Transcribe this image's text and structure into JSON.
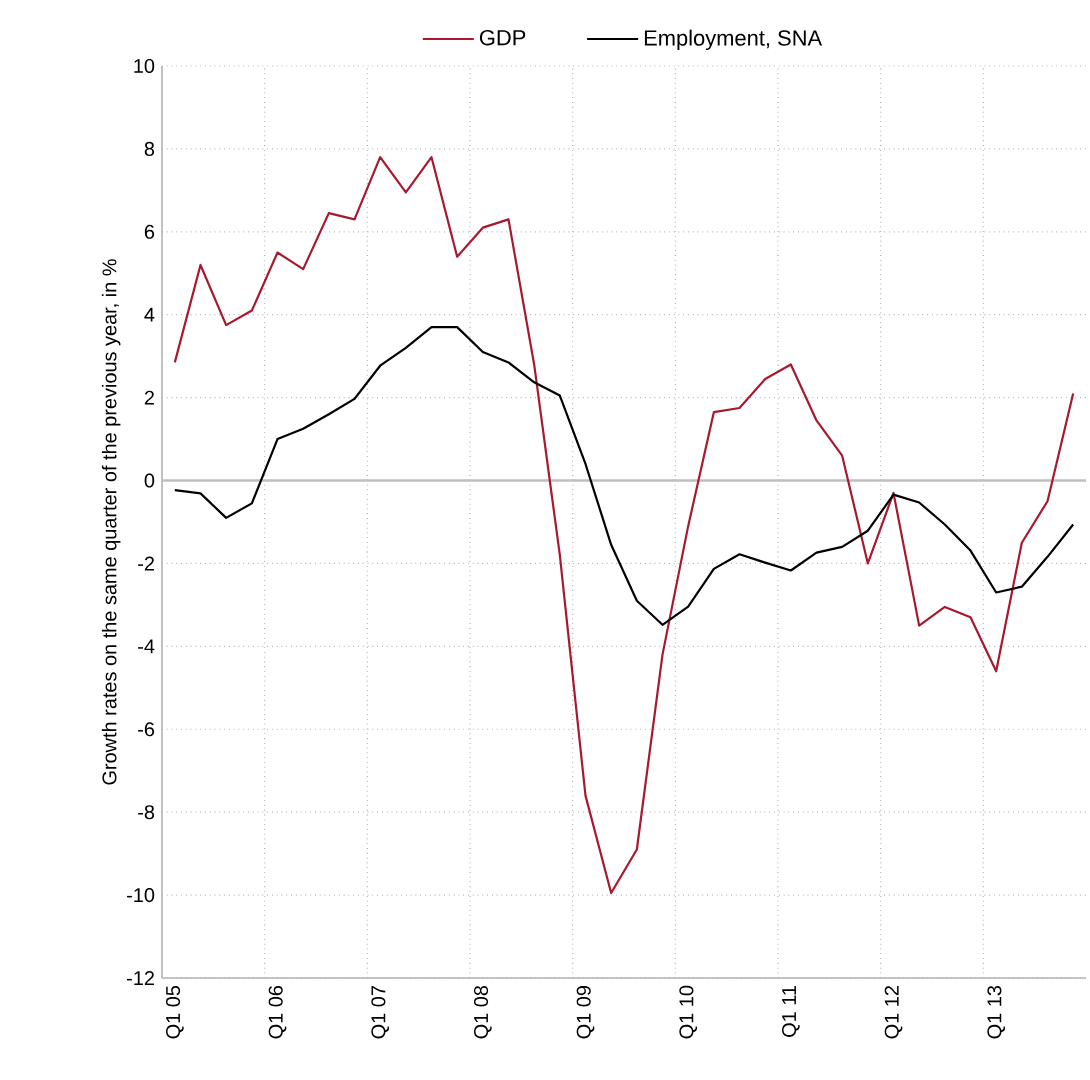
{
  "chart_data": {
    "type": "line",
    "ylabel": "Growth rates on the same quarter of the previous year, in %",
    "categories": [
      "Q1 05",
      null,
      null,
      null,
      "Q1 06",
      null,
      null,
      null,
      "Q1 07",
      null,
      null,
      null,
      "Q1 08",
      null,
      null,
      null,
      "Q1 09",
      null,
      null,
      null,
      "Q1 10",
      null,
      null,
      null,
      "Q1 11",
      null,
      null,
      null,
      "Q1 12",
      null,
      null,
      null,
      "Q1 13",
      null,
      null,
      null
    ],
    "series": [
      {
        "name": "GDP",
        "color": "#a6192e",
        "values": [
          2.85,
          5.2,
          3.75,
          4.1,
          5.5,
          5.1,
          6.45,
          6.3,
          7.8,
          6.95,
          7.8,
          5.4,
          6.1,
          6.3,
          2.8,
          -1.8,
          -7.6,
          -9.95,
          -8.9,
          -4.2,
          -1.1,
          1.65,
          1.75,
          2.45,
          2.8,
          1.45,
          0.6,
          -2.0,
          -0.3,
          -3.5,
          -3.05,
          -3.3,
          -4.6,
          -1.5,
          -0.5,
          2.1
        ]
      },
      {
        "name": "Employment, SNA",
        "color": "#000000",
        "values": [
          -0.23,
          -0.31,
          -0.9,
          -0.55,
          1.0,
          1.25,
          1.6,
          1.97,
          2.77,
          3.2,
          3.7,
          3.7,
          3.1,
          2.85,
          2.37,
          2.05,
          0.4,
          -1.55,
          -2.9,
          -3.48,
          -3.04,
          -2.13,
          -1.78,
          -1.98,
          -2.17,
          -1.74,
          -1.6,
          -1.21,
          -0.34,
          -0.53,
          -1.06,
          -1.69,
          -2.7,
          -2.56,
          -1.84,
          -1.06
        ]
      }
    ],
    "ylim": [
      -12,
      10
    ],
    "yticks": [
      -12,
      -10,
      -8,
      -6,
      -4,
      -2,
      0,
      2,
      4,
      6,
      8,
      10
    ],
    "ref_lines": [
      {
        "axis": "y",
        "value": 0,
        "color": "#bfbfbf"
      }
    ],
    "grid": true,
    "legend": "top",
    "marker": "none",
    "line_style": "solid"
  }
}
